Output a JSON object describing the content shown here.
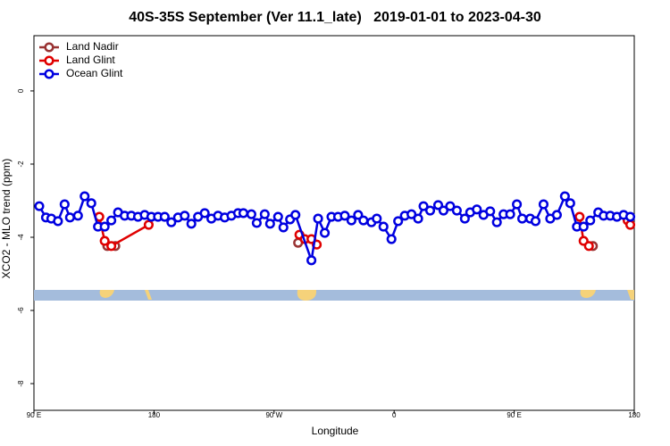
{
  "chart_data": {
    "type": "line",
    "title": "40S-35S September (Ver 11.1_late)   2019-01-01 to 2023-04-30",
    "x_label": "Longitude",
    "y_label": "XCO2 - MLO trend (ppm)",
    "xlim": [
      90,
      540
    ],
    "ylim": [
      -8.73,
      1.51
    ],
    "xticks": [
      {
        "value": 90,
        "label": "90 E"
      },
      180,
      {
        "value": 270,
        "label": "90 W"
      },
      {
        "value": 360,
        "label": "0"
      },
      {
        "value": 450,
        "label": "90 E"
      },
      {
        "value": 540,
        "label": "180"
      }
    ],
    "yticks": [
      0,
      -2,
      -4,
      -6,
      -8
    ],
    "legend": "top-left",
    "series": [
      {
        "name": "Land Nadir",
        "color": "#993333",
        "x": [
          145,
          151,
          null,
          288,
          null,
          509
        ],
        "values": [
          -4.24,
          -4.24,
          null,
          -4.15,
          null,
          -4.24
        ]
      },
      {
        "name": "Land Glint",
        "color": "#e00000",
        "x": [
          139,
          143,
          148,
          176,
          null,
          289,
          293,
          298,
          302,
          null,
          499,
          502,
          506,
          null,
          535,
          537
        ],
        "values": [
          -3.44,
          -4.1,
          -4.24,
          -3.66,
          null,
          -3.93,
          -4.05,
          -4.05,
          -4.2,
          null,
          -3.44,
          -4.1,
          -4.24,
          null,
          -3.54,
          -3.66
        ]
      },
      {
        "name": "Ocean Glint",
        "color": "#0000e0",
        "x": [
          94,
          99,
          103,
          108,
          113,
          117,
          123,
          128,
          133,
          138,
          143,
          148,
          153,
          158,
          163,
          168,
          173,
          178,
          183,
          188,
          193,
          198,
          203,
          208,
          213,
          218,
          223,
          228,
          233,
          238,
          243,
          247,
          253,
          257,
          263,
          267,
          273,
          277,
          282,
          286,
          298,
          303,
          308,
          313,
          318,
          323,
          328,
          333,
          337,
          343,
          347,
          352,
          358,
          363,
          368,
          373,
          378,
          382,
          387,
          393,
          397,
          402,
          407,
          413,
          417,
          422,
          427,
          432,
          437,
          442,
          447,
          452,
          456,
          462,
          466,
          472,
          477,
          482,
          488,
          492,
          497,
          502,
          507,
          513,
          517,
          522,
          527,
          532,
          537
        ],
        "values": [
          -3.15,
          -3.46,
          -3.49,
          -3.56,
          -3.1,
          -3.46,
          -3.41,
          -2.88,
          -3.07,
          -3.71,
          -3.71,
          -3.54,
          -3.32,
          -3.41,
          -3.41,
          -3.44,
          -3.39,
          -3.44,
          -3.44,
          -3.44,
          -3.59,
          -3.46,
          -3.41,
          -3.63,
          -3.44,
          -3.34,
          -3.49,
          -3.41,
          -3.46,
          -3.41,
          -3.34,
          -3.34,
          -3.37,
          -3.61,
          -3.37,
          -3.63,
          -3.44,
          -3.73,
          -3.51,
          -3.39,
          -4.63,
          -3.49,
          -3.88,
          -3.44,
          -3.44,
          -3.41,
          -3.54,
          -3.39,
          -3.54,
          -3.59,
          -3.49,
          -3.71,
          -4.05,
          -3.56,
          -3.41,
          -3.37,
          -3.49,
          -3.15,
          -3.27,
          -3.12,
          -3.27,
          -3.15,
          -3.27,
          -3.49,
          -3.32,
          -3.24,
          -3.39,
          -3.29,
          -3.59,
          -3.37,
          -3.37,
          -3.1,
          -3.49,
          -3.49,
          -3.56,
          -3.1,
          -3.49,
          -3.39,
          -2.88,
          -3.07,
          -3.71,
          -3.71,
          -3.54,
          -3.32,
          -3.41,
          -3.41,
          -3.44,
          -3.39,
          -3.44
        ]
      }
    ]
  }
}
